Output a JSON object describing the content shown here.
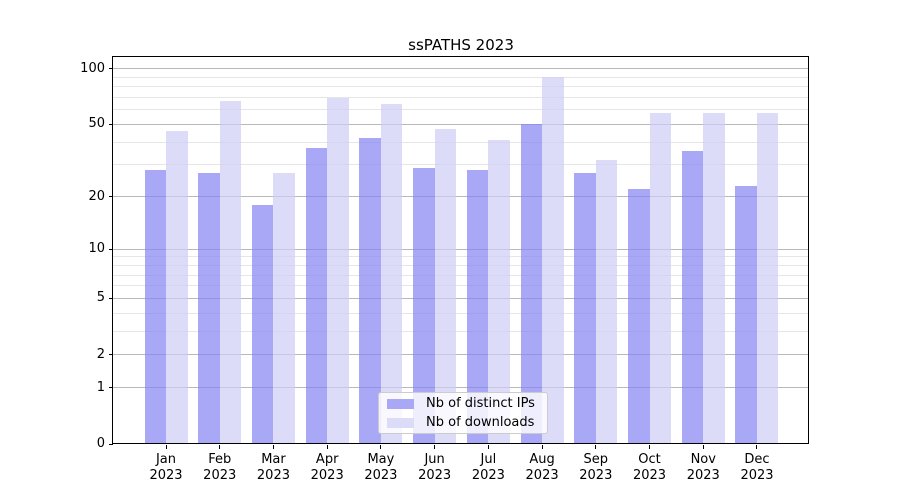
{
  "title": "ssPATHS 2023",
  "colors": {
    "ip_bar": "rgba(131,131,242,0.7)",
    "dl_bar": "rgba(205,205,245,0.7)",
    "ip_swatch": "#a8a8f6",
    "dl_swatch": "#dcdcf8",
    "grid_major": "#b9b9b9",
    "grid_minor": "#e6e6e6",
    "axis": "#000000"
  },
  "legend": {
    "items": [
      {
        "label": "Nb of distinct IPs"
      },
      {
        "label": "Nb of downloads"
      }
    ]
  },
  "chart_data": {
    "type": "bar",
    "title": "ssPATHS 2023",
    "categories": [
      "Jan",
      "Feb",
      "Mar",
      "Apr",
      "May",
      "Jun",
      "Jul",
      "Aug",
      "Sep",
      "Oct",
      "Nov",
      "Dec"
    ],
    "category_year": "2023",
    "series": [
      {
        "name": "Nb of distinct IPs",
        "values": [
          28,
          27,
          18,
          37,
          42,
          29,
          28,
          50,
          27,
          22,
          36,
          23
        ]
      },
      {
        "name": "Nb of downloads",
        "values": [
          46,
          67,
          27,
          70,
          65,
          47,
          41,
          90,
          32,
          58,
          58,
          58
        ]
      }
    ],
    "yscale": "log1p",
    "y_ticks": [
      0,
      1,
      2,
      5,
      10,
      20,
      50,
      100
    ],
    "y_minor_ticks": [
      3,
      4,
      6,
      7,
      8,
      9,
      30,
      40,
      60,
      70,
      80,
      90
    ],
    "ylim": [
      0,
      116
    ],
    "xlabel": "",
    "ylabel": "",
    "grid": true,
    "legend_position": "lower center"
  }
}
